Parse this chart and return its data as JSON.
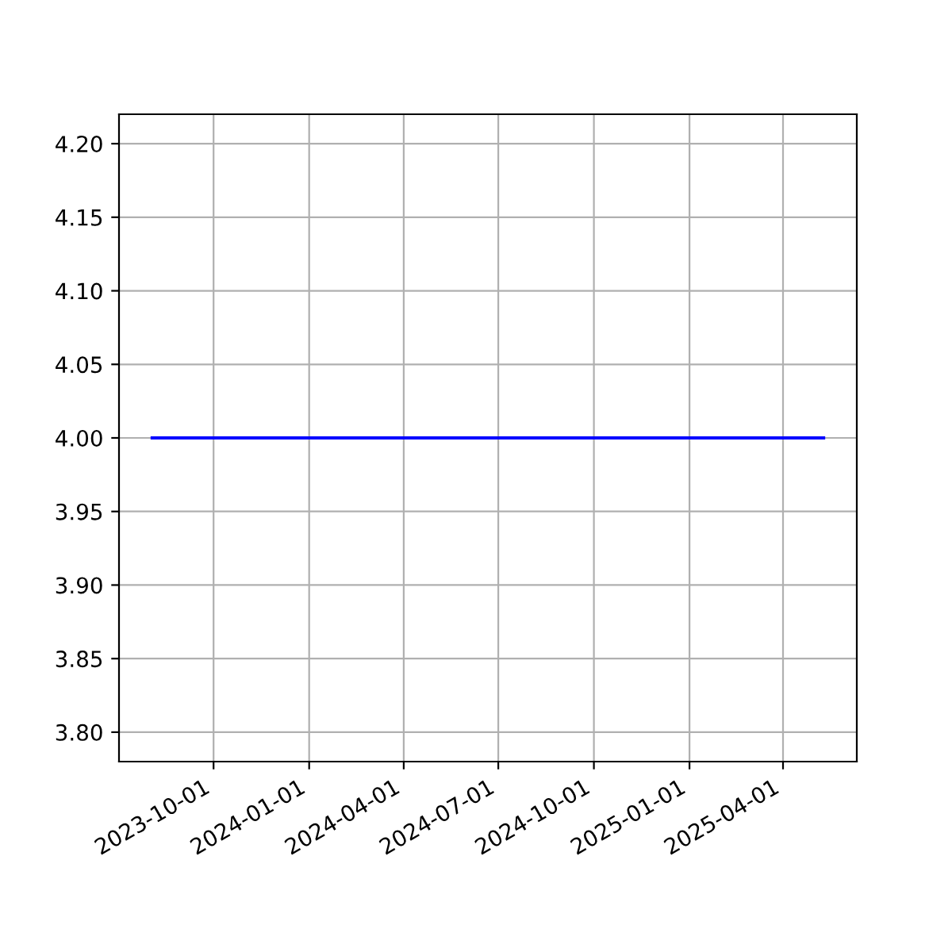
{
  "chart_data": {
    "type": "line",
    "x": [
      "2023-08-03",
      "2025-05-10"
    ],
    "series": [
      {
        "color": "#0000ff",
        "values": [
          4.0,
          4.0
        ]
      }
    ],
    "xlim": [
      "2023-07-02",
      "2025-06-11"
    ],
    "xticks": [
      "2023-10-01",
      "2024-01-01",
      "2024-04-01",
      "2024-07-01",
      "2024-10-01",
      "2025-01-01",
      "2025-04-01"
    ],
    "ylim": [
      3.78,
      4.22
    ],
    "yticks": [
      {
        "value": 3.8,
        "label": "3.80"
      },
      {
        "value": 3.85,
        "label": "3.85"
      },
      {
        "value": 3.9,
        "label": "3.90"
      },
      {
        "value": 3.95,
        "label": "3.95"
      },
      {
        "value": 4.0,
        "label": "4.00"
      },
      {
        "value": 4.05,
        "label": "4.05"
      },
      {
        "value": 4.1,
        "label": "4.10"
      },
      {
        "value": 4.15,
        "label": "4.15"
      },
      {
        "value": 4.2,
        "label": "4.20"
      }
    ],
    "grid": true
  }
}
